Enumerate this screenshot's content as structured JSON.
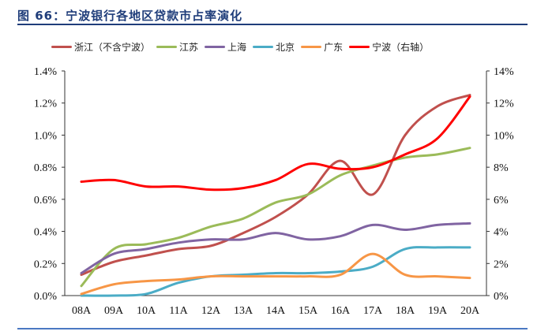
{
  "title": "图 66：宁波银行各地区贷款市占率演化",
  "chart_data": {
    "type": "line",
    "title": "图 66：宁波银行各地区贷款市占率演化",
    "categories": [
      "08A",
      "09A",
      "10A",
      "11A",
      "12A",
      "13A",
      "14A",
      "15A",
      "16A",
      "17A",
      "18A",
      "19A",
      "20A"
    ],
    "y_left": {
      "range": [
        0,
        1.4
      ],
      "unit": "%",
      "ticks": [
        "0.0%",
        "0.2%",
        "0.4%",
        "0.6%",
        "0.8%",
        "1.0%",
        "1.2%",
        "1.4%"
      ]
    },
    "y_right": {
      "range": [
        0,
        14
      ],
      "unit": "%",
      "ticks": [
        "0%",
        "2%",
        "4%",
        "6%",
        "8%",
        "10%",
        "12%",
        "14%"
      ]
    },
    "grid": false,
    "legend_placement": "top",
    "series": [
      {
        "name": "浙江（不含宁波）",
        "axis": "left",
        "color": "#c0504d",
        "values": [
          0.13,
          0.21,
          0.25,
          0.29,
          0.31,
          0.39,
          0.49,
          0.63,
          0.84,
          0.63,
          1.0,
          1.18,
          1.25
        ]
      },
      {
        "name": "江苏",
        "axis": "left",
        "color": "#9bbb59",
        "values": [
          0.06,
          0.29,
          0.32,
          0.36,
          0.43,
          0.48,
          0.58,
          0.63,
          0.75,
          0.81,
          0.86,
          0.88,
          0.92
        ]
      },
      {
        "name": "上海",
        "axis": "left",
        "color": "#8064a2",
        "values": [
          0.14,
          0.26,
          0.29,
          0.33,
          0.35,
          0.35,
          0.39,
          0.35,
          0.37,
          0.44,
          0.41,
          0.44,
          0.45
        ]
      },
      {
        "name": "北京",
        "axis": "left",
        "color": "#4bacc6",
        "values": [
          0.0,
          0.0,
          0.01,
          0.08,
          0.12,
          0.13,
          0.14,
          0.14,
          0.15,
          0.18,
          0.29,
          0.3,
          0.3
        ]
      },
      {
        "name": "广东",
        "axis": "left",
        "color": "#f79646",
        "values": [
          0.01,
          0.07,
          0.09,
          0.1,
          0.12,
          0.12,
          0.12,
          0.12,
          0.13,
          0.26,
          0.13,
          0.12,
          0.11
        ]
      },
      {
        "name": "宁波（右轴）",
        "axis": "right",
        "color": "#ff0000",
        "values": [
          7.1,
          7.2,
          6.8,
          6.8,
          6.6,
          6.7,
          7.2,
          8.2,
          7.9,
          8.0,
          8.8,
          9.8,
          12.4
        ]
      }
    ]
  }
}
